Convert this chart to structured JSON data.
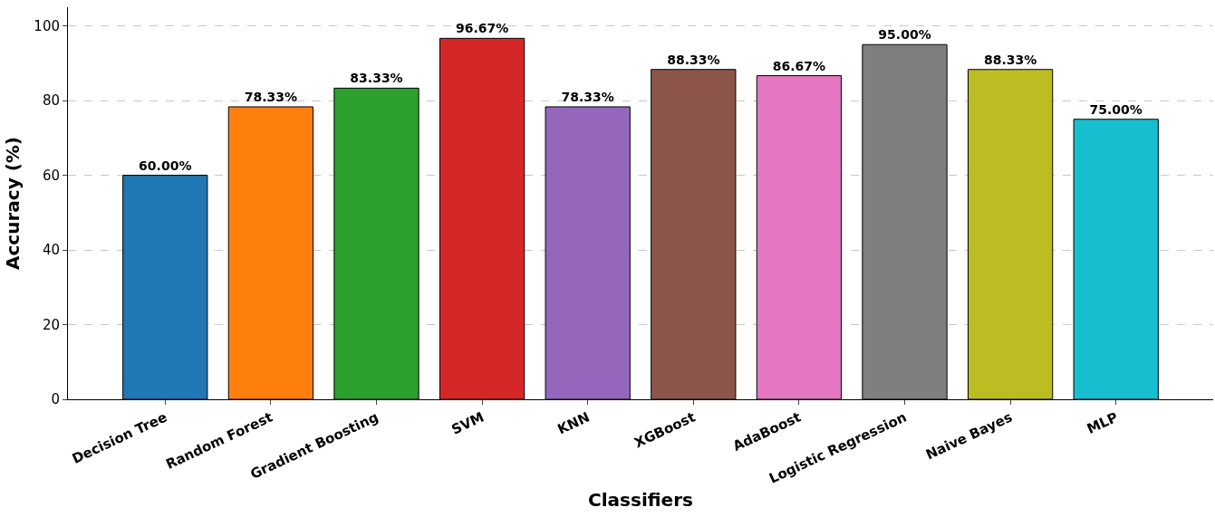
{
  "chart_data": {
    "type": "bar",
    "xlabel": "Classifiers",
    "ylabel": "Accuracy (%)",
    "categories": [
      "Decision Tree",
      "Random Forest",
      "Gradient Boosting",
      "SVM",
      "KNN",
      "XGBoost",
      "AdaBoost",
      "Logistic Regression",
      "Naive Bayes",
      "MLP"
    ],
    "values": [
      60.0,
      78.33,
      83.33,
      96.67,
      78.33,
      88.33,
      86.67,
      95.0,
      88.33,
      75.0
    ],
    "colors": [
      "#1f77b4",
      "#ff7f0e",
      "#2ca02c",
      "#d62728",
      "#9467bd",
      "#8c564b",
      "#e377c2",
      "#7f7f7f",
      "#bcbd22",
      "#17becf"
    ],
    "value_labels": [
      "60.00%",
      "78.33%",
      "83.33%",
      "96.67%",
      "78.33%",
      "88.33%",
      "86.67%",
      "95.00%",
      "88.33%",
      "75.00%"
    ],
    "ylim": [
      0,
      105
    ],
    "yticks": [
      0,
      20,
      40,
      60,
      80,
      100
    ],
    "grid": "y"
  }
}
